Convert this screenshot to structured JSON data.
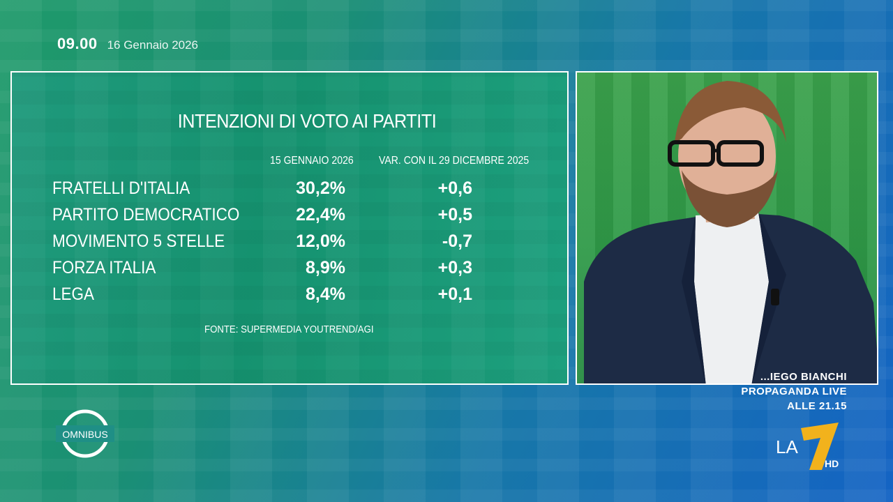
{
  "header": {
    "time": "09.00",
    "date": "16 Gennaio 2026"
  },
  "poll": {
    "title": "INTENZIONI DI VOTO AI PARTITI",
    "col_date": "15 GENNAIO 2026",
    "col_var": "VAR. CON IL 29 DICEMBRE 2025",
    "rows": [
      {
        "party": "FRATELLI D'ITALIA",
        "pct": "30,2%",
        "var": "+0,6"
      },
      {
        "party": "PARTITO DEMOCRATICO",
        "pct": "22,4%",
        "var": "+0,5"
      },
      {
        "party": "MOVIMENTO 5 STELLE",
        "pct": "12,0%",
        "var": "-0,7"
      },
      {
        "party": "FORZA ITALIA",
        "pct": "8,9%",
        "var": "+0,3"
      },
      {
        "party": "LEGA",
        "pct": "8,4%",
        "var": "+0,1"
      }
    ],
    "source": "FONTE: SUPERMEDIA YOUTREND/AGI"
  },
  "ticker": {
    "line1": "...IEGO BIANCHI",
    "line2": "PROPAGANDA LIVE",
    "line3": "ALLE 21.15"
  },
  "logos": {
    "program": "OMNIBUS",
    "channel": "LA",
    "channel_num": "7",
    "channel_hd": "HD"
  },
  "colors": {
    "panel_green": "#1a9676",
    "accent_yellow": "#f2b21c",
    "border": "#ffffff"
  }
}
